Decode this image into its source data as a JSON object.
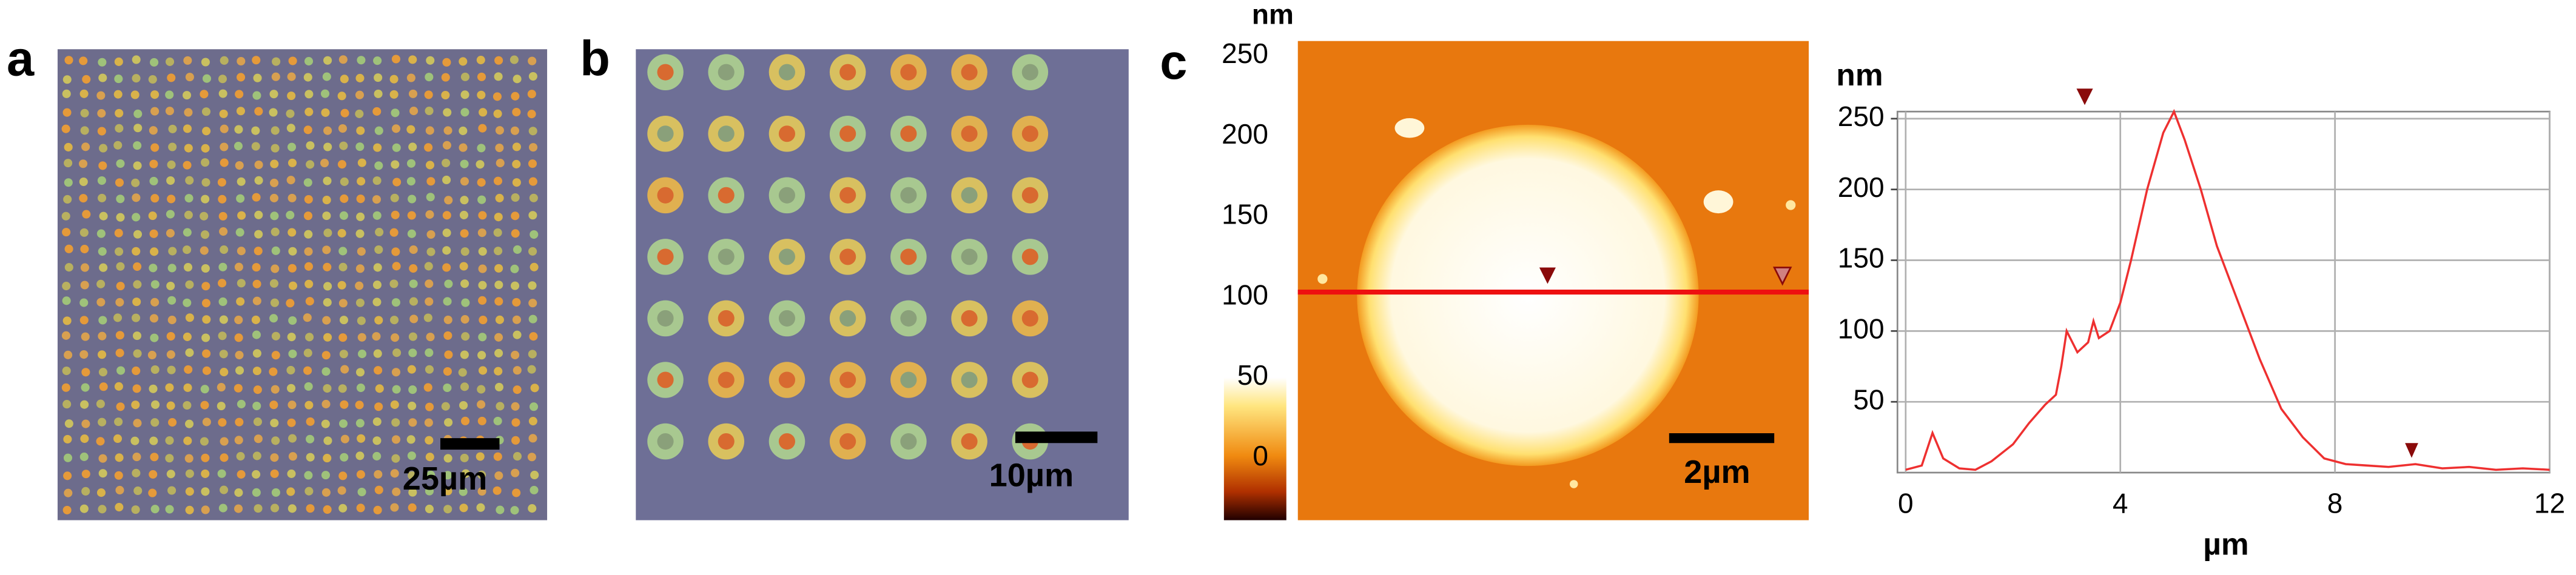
{
  "panels": {
    "a": {
      "label": "a",
      "scale_bar": "25µm"
    },
    "b": {
      "label": "b",
      "scale_bar": "10µm"
    },
    "c": {
      "label": "c",
      "scale_bar": "2µm",
      "colorbar": {
        "unit": "nm",
        "ticks": [
          250,
          200,
          150,
          100,
          50,
          0
        ]
      }
    }
  },
  "chart_data": {
    "type": "line",
    "x_label": "µm",
    "y_label": "nm",
    "xlim": [
      0,
      12
    ],
    "ylim": [
      0,
      255
    ],
    "xticks": [
      0,
      4,
      8,
      12
    ],
    "yticks": [
      50,
      100,
      150,
      200,
      250
    ],
    "grid": true,
    "series": [
      {
        "color": "#ee3030",
        "x": [
          0,
          0.3,
          0.5,
          0.7,
          1.0,
          1.3,
          1.6,
          2.0,
          2.3,
          2.6,
          2.8,
          2.9,
          3.0,
          3.2,
          3.4,
          3.5,
          3.6,
          3.8,
          4.0,
          4.2,
          4.5,
          4.8,
          5.0,
          5.2,
          5.5,
          5.8,
          6.2,
          6.6,
          7.0,
          7.4,
          7.8,
          8.2,
          8.6,
          9.0,
          9.5,
          10.0,
          10.5,
          11.0,
          11.5,
          12.0
        ],
        "values": [
          2,
          5,
          28,
          10,
          3,
          2,
          8,
          20,
          35,
          48,
          55,
          75,
          100,
          85,
          92,
          107,
          95,
          100,
          120,
          150,
          200,
          240,
          255,
          235,
          200,
          160,
          120,
          80,
          45,
          25,
          10,
          6,
          5,
          4,
          6,
          3,
          4,
          2,
          3,
          2
        ]
      }
    ]
  }
}
